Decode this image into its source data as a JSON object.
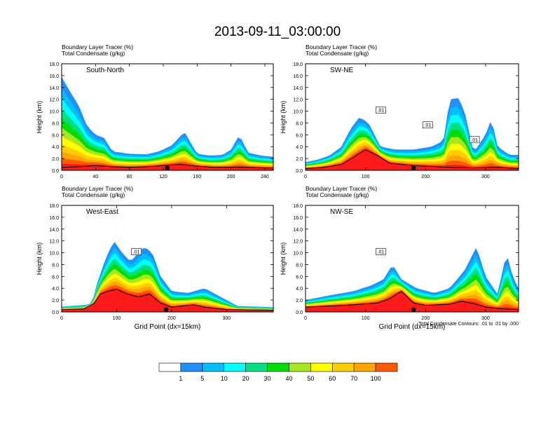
{
  "title": "2013-09-11_03:00:00",
  "colors": {
    "levels": [
      "#ffffff",
      "#1e90ff",
      "#00bfff",
      "#00ffff",
      "#00e080",
      "#00dd00",
      "#a8e61d",
      "#ffff00",
      "#ffcc00",
      "#ffa500",
      "#ff5a00",
      "#ff1a1a"
    ],
    "terrain": "#000000",
    "contour": "#000000"
  },
  "chart_data": [
    {
      "type": "area",
      "panel_label": "South-North",
      "header_lines": [
        "Boundary Layer Tracer   (%)",
        "Total Condensate   (g/kg)"
      ],
      "xlim": [
        0,
        250
      ],
      "ylim": [
        0,
        18
      ],
      "x_ticks": [
        0,
        40,
        80,
        120,
        160,
        200,
        240
      ],
      "ylabel": "Height (km)",
      "xlabel": "",
      "marker_x": 125,
      "contour_labels": [],
      "terrain": [
        [
          0,
          0.5
        ],
        [
          20,
          0.6
        ],
        [
          40,
          0.8
        ],
        [
          60,
          0.6
        ],
        [
          80,
          0.5
        ],
        [
          100,
          0.6
        ],
        [
          120,
          0.8
        ],
        [
          140,
          1.0
        ],
        [
          160,
          0.7
        ],
        [
          180,
          0.5
        ],
        [
          200,
          0.5
        ],
        [
          220,
          0.5
        ],
        [
          240,
          0.4
        ],
        [
          250,
          0.4
        ]
      ],
      "tracer_top": [
        [
          0,
          15.8
        ],
        [
          5,
          14.5
        ],
        [
          12,
          12.8
        ],
        [
          20,
          11
        ],
        [
          30,
          7.5
        ],
        [
          40,
          6
        ],
        [
          50,
          5.5
        ],
        [
          60,
          3.2
        ],
        [
          80,
          2.8
        ],
        [
          100,
          2.7
        ],
        [
          115,
          3.2
        ],
        [
          130,
          4.2
        ],
        [
          145,
          6.5
        ],
        [
          160,
          2.8
        ],
        [
          175,
          2.5
        ],
        [
          190,
          2.6
        ],
        [
          200,
          3.5
        ],
        [
          210,
          6
        ],
        [
          220,
          3
        ],
        [
          235,
          2.5
        ],
        [
          250,
          2.3
        ]
      ]
    },
    {
      "type": "area",
      "panel_label": "SW-NE",
      "header_lines": [
        "Boundary Layer Tracer   (%)",
        "Total Condensate   (g/kg)"
      ],
      "xlim": [
        0,
        355
      ],
      "ylim": [
        0,
        18
      ],
      "x_ticks": [
        0,
        100,
        200,
        300
      ],
      "ylabel": "Height (km)",
      "xlabel": "",
      "marker_x": 180,
      "contour_labels": [
        ".01",
        ".01",
        ".01"
      ],
      "terrain": [
        [
          0,
          0.3
        ],
        [
          30,
          0.5
        ],
        [
          60,
          1.0
        ],
        [
          80,
          2.2
        ],
        [
          100,
          3.5
        ],
        [
          120,
          2.5
        ],
        [
          140,
          1.2
        ],
        [
          180,
          0.8
        ],
        [
          220,
          0.6
        ],
        [
          240,
          0.5
        ],
        [
          280,
          0.4
        ],
        [
          320,
          0.5
        ],
        [
          355,
          0.3
        ]
      ],
      "tracer_top": [
        [
          0,
          1.4
        ],
        [
          20,
          1.8
        ],
        [
          40,
          2.5
        ],
        [
          60,
          4
        ],
        [
          75,
          7
        ],
        [
          90,
          9
        ],
        [
          105,
          8
        ],
        [
          125,
          4
        ],
        [
          150,
          3.5
        ],
        [
          180,
          3.5
        ],
        [
          210,
          4
        ],
        [
          230,
          5
        ],
        [
          240,
          12
        ],
        [
          255,
          12.2
        ],
        [
          265,
          10
        ],
        [
          280,
          3
        ],
        [
          300,
          6
        ],
        [
          310,
          8.8
        ],
        [
          320,
          4
        ],
        [
          340,
          2.6
        ],
        [
          355,
          2.6
        ]
      ]
    },
    {
      "type": "area",
      "panel_label": "West-East",
      "header_lines": [
        "Boundary Layer Tracer   (%)",
        "Total Condensate   (g/kg)"
      ],
      "xlim": [
        0,
        385
      ],
      "ylim": [
        0,
        18
      ],
      "x_ticks": [
        0,
        100,
        200,
        300
      ],
      "ylabel": "Height (km)",
      "xlabel": "Grid Point (dx=15km)",
      "marker_x": 190,
      "contour_labels": [
        ".01"
      ],
      "terrain": [
        [
          0,
          0.4
        ],
        [
          40,
          0.5
        ],
        [
          60,
          1.5
        ],
        [
          70,
          3
        ],
        [
          85,
          3.5
        ],
        [
          100,
          3.8
        ],
        [
          120,
          3
        ],
        [
          140,
          2.5
        ],
        [
          160,
          3
        ],
        [
          180,
          1.5
        ],
        [
          200,
          0.8
        ],
        [
          240,
          1.2
        ],
        [
          260,
          0.8
        ],
        [
          300,
          0.4
        ],
        [
          385,
          0.3
        ]
      ],
      "tracer_top": [
        [
          0,
          0.9
        ],
        [
          45,
          1.2
        ],
        [
          55,
          1.5
        ],
        [
          65,
          5
        ],
        [
          80,
          9
        ],
        [
          95,
          12
        ],
        [
          110,
          10
        ],
        [
          125,
          8.5
        ],
        [
          150,
          11
        ],
        [
          165,
          10
        ],
        [
          180,
          6
        ],
        [
          200,
          3.5
        ],
        [
          230,
          3.2
        ],
        [
          260,
          4
        ],
        [
          280,
          3
        ],
        [
          300,
          2
        ],
        [
          320,
          1.0
        ],
        [
          385,
          0.8
        ]
      ]
    },
    {
      "type": "area",
      "panel_label": "NW-SE",
      "header_lines": [
        "Boundary Layer Tracer   (%)",
        "Total Condensate   (g/kg)"
      ],
      "xlim": [
        0,
        355
      ],
      "ylim": [
        0,
        18
      ],
      "x_ticks": [
        0,
        100,
        200,
        300
      ],
      "ylabel": "Height (km)",
      "xlabel": "Grid Point (dx=15km)",
      "marker_x": 180,
      "contour_labels": [
        ".01"
      ],
      "footnote": "Total Condensate Contours: .01 to .01 by .000",
      "terrain": [
        [
          0,
          0.8
        ],
        [
          40,
          1.0
        ],
        [
          80,
          1.2
        ],
        [
          120,
          1.5
        ],
        [
          140,
          2.2
        ],
        [
          160,
          3.5
        ],
        [
          180,
          1.5
        ],
        [
          200,
          1.1
        ],
        [
          240,
          1.3
        ],
        [
          260,
          1.8
        ],
        [
          280,
          1.4
        ],
        [
          300,
          0.8
        ],
        [
          330,
          0.5
        ],
        [
          355,
          0.4
        ]
      ],
      "tracer_top": [
        [
          0,
          2
        ],
        [
          40,
          2.8
        ],
        [
          80,
          3.5
        ],
        [
          110,
          4.5
        ],
        [
          130,
          5.5
        ],
        [
          145,
          8
        ],
        [
          160,
          5.5
        ],
        [
          185,
          4
        ],
        [
          215,
          3.2
        ],
        [
          240,
          4
        ],
        [
          265,
          7
        ],
        [
          285,
          11
        ],
        [
          300,
          6
        ],
        [
          320,
          3
        ],
        [
          335,
          10
        ],
        [
          345,
          6
        ],
        [
          355,
          4
        ]
      ]
    }
  ],
  "colorbar": {
    "labels": [
      "1",
      "5",
      "10",
      "20",
      "30",
      "40",
      "50",
      "60",
      "70",
      "100"
    ]
  }
}
